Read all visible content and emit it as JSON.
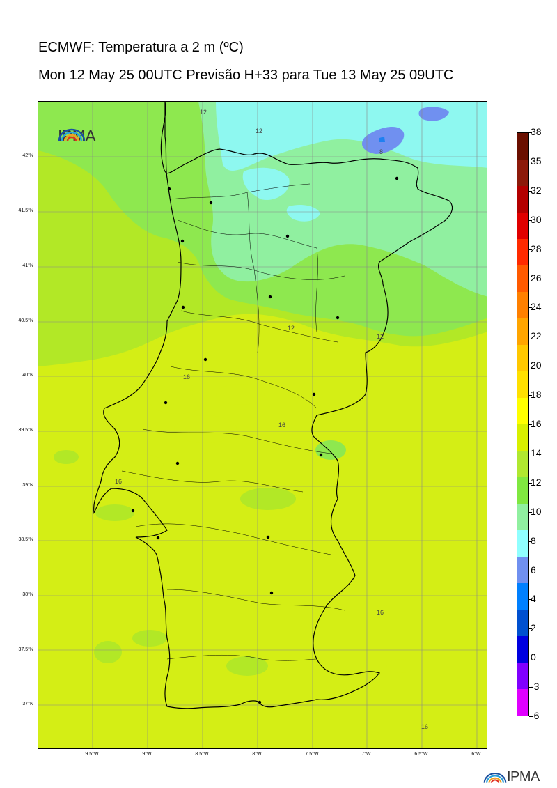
{
  "header": {
    "title": "ECMWF: Temperatura a 2 m (ºC)",
    "subtitle": "Mon 12 May 25 00UTC Previsão H+33 para Tue 13 May 25 09UTC"
  },
  "logo": {
    "text": "IPMA",
    "icon": "ipma-rainbow-icon"
  },
  "map": {
    "lat_labels": [
      "42°N",
      "41.5°N",
      "41°N",
      "40.5°N",
      "40°N",
      "39.5°N",
      "39°N",
      "38.5°N",
      "38°N",
      "37.5°N",
      "37°N"
    ],
    "lon_labels": [
      "9.5°W",
      "9°W",
      "8.5°W",
      "8°W",
      "7.5°W",
      "7°W",
      "6.5°W",
      "6°W"
    ],
    "contour_labels": [
      "12",
      "12",
      "8",
      "12",
      "12",
      "16",
      "16",
      "16",
      "16",
      "16"
    ],
    "colors": {
      "t16_18": "#d4ee15",
      "t14_16": "#b2e826",
      "t12_14": "#8ee84f",
      "t10_12": "#90f0a0",
      "t8_10": "#8ef8f0",
      "t6_8": "#7090f0",
      "t4_6": "#2080f0"
    }
  },
  "colorbar": {
    "levels": [
      "38",
      "35",
      "32",
      "30",
      "28",
      "26",
      "24",
      "22",
      "20",
      "18",
      "16",
      "14",
      "12",
      "10",
      "8",
      "6",
      "4",
      "2",
      "0",
      "-3",
      "-6"
    ],
    "colors": [
      "#6a0f00",
      "#8c1a0a",
      "#b30000",
      "#e00000",
      "#ff2a00",
      "#ff5a00",
      "#ff8000",
      "#ffa500",
      "#ffc800",
      "#ffe000",
      "#ffff00",
      "#d8f000",
      "#b0e830",
      "#80e840",
      "#90f0a0",
      "#90ffff",
      "#7090f0",
      "#0080ff",
      "#0050d0",
      "#0000e0",
      "#8000ff",
      "#e000ff"
    ]
  }
}
